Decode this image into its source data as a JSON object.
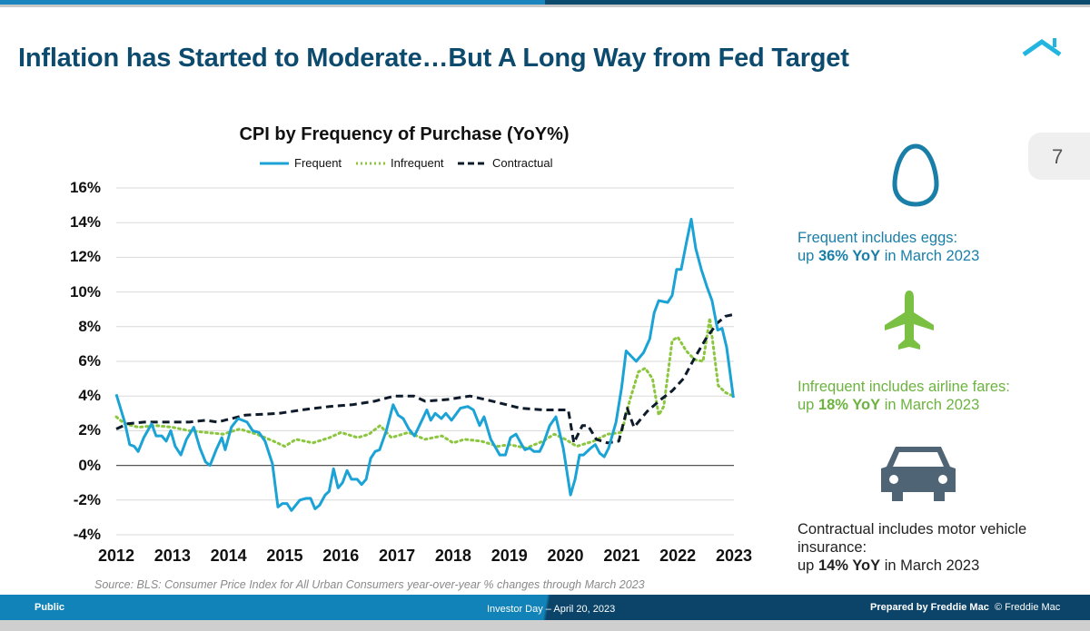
{
  "slide": {
    "title": "Inflation has Started to Moderate…But A Long Way from Fed Target",
    "page_number": "7",
    "source": "Source: BLS: Consumer Price Index for All Urban Consumers year-over-year % changes through March 2023",
    "footer": {
      "left": "Public",
      "center": "Investor Day – April 20, 2023",
      "prepared": "Prepared by Freddie Mac",
      "copyright": "© Freddie Mac"
    },
    "colors": {
      "navy": "#0c4a6e",
      "blue": "#1a9fd4",
      "green": "#7ac143",
      "slate": "#4f6475"
    }
  },
  "notes": [
    {
      "icon": "egg-icon",
      "pre": "Frequent includes eggs:",
      "line2_pre": "up ",
      "bold": "36% YoY",
      "post": " in March 2023",
      "color": "#1a7fa8"
    },
    {
      "icon": "airplane-icon",
      "pre": "Infrequent includes airline fares:",
      "line2_pre": "up ",
      "bold": "18% YoY",
      "post": " in March 2023",
      "color": "#6cb33f"
    },
    {
      "icon": "car-icon",
      "pre": "Contractual includes motor vehicle insurance:",
      "line2_pre": "up ",
      "bold": "14% YoY",
      "post": " in March 2023",
      "color": "#222"
    }
  ],
  "chart_data": {
    "type": "line",
    "title": "CPI by Frequency of Purchase (YoY%)",
    "xlabel": "",
    "ylabel": "",
    "xlim": [
      2012,
      2023
    ],
    "ylim": [
      -4,
      16
    ],
    "x_ticks": [
      "2012",
      "2013",
      "2014",
      "2015",
      "2016",
      "2017",
      "2018",
      "2019",
      "2020",
      "2021",
      "2022",
      "2023"
    ],
    "y_ticks": [
      "16%",
      "14%",
      "12%",
      "10%",
      "8%",
      "6%",
      "4%",
      "2%",
      "0%",
      "-2%",
      "-4%"
    ],
    "grid": true,
    "legend": "top",
    "series": [
      {
        "name": "Frequent",
        "style": "solid",
        "color": "#1ba3d6",
        "points": [
          [
            2012.0,
            4.1
          ],
          [
            2012.15,
            2.5
          ],
          [
            2012.24,
            1.2
          ],
          [
            2012.32,
            1.1
          ],
          [
            2012.39,
            0.8
          ],
          [
            2012.49,
            1.6
          ],
          [
            2012.63,
            2.4
          ],
          [
            2012.71,
            1.7
          ],
          [
            2012.81,
            1.7
          ],
          [
            2012.89,
            1.4
          ],
          [
            2012.97,
            2.0
          ],
          [
            2013.05,
            1.1
          ],
          [
            2013.15,
            0.6
          ],
          [
            2013.25,
            1.5
          ],
          [
            2013.38,
            2.2
          ],
          [
            2013.49,
            1.0
          ],
          [
            2013.59,
            0.2
          ],
          [
            2013.67,
            0.0
          ],
          [
            2013.78,
            0.9
          ],
          [
            2013.88,
            1.6
          ],
          [
            2013.94,
            0.9
          ],
          [
            2014.05,
            2.2
          ],
          [
            2014.17,
            2.7
          ],
          [
            2014.33,
            2.5
          ],
          [
            2014.43,
            2.0
          ],
          [
            2014.54,
            1.9
          ],
          [
            2014.65,
            1.4
          ],
          [
            2014.78,
            0.1
          ],
          [
            2014.88,
            -2.4
          ],
          [
            2014.96,
            -2.2
          ],
          [
            2015.04,
            -2.2
          ],
          [
            2015.12,
            -2.6
          ],
          [
            2015.27,
            -2.0
          ],
          [
            2015.38,
            -1.9
          ],
          [
            2015.46,
            -1.9
          ],
          [
            2015.54,
            -2.5
          ],
          [
            2015.62,
            -2.3
          ],
          [
            2015.72,
            -1.7
          ],
          [
            2015.79,
            -1.5
          ],
          [
            2015.87,
            -0.2
          ],
          [
            2015.95,
            -1.3
          ],
          [
            2016.03,
            -1.0
          ],
          [
            2016.11,
            -0.3
          ],
          [
            2016.19,
            -0.8
          ],
          [
            2016.29,
            -0.8
          ],
          [
            2016.37,
            -1.1
          ],
          [
            2016.45,
            -0.8
          ],
          [
            2016.53,
            0.4
          ],
          [
            2016.61,
            0.8
          ],
          [
            2016.69,
            0.9
          ],
          [
            2016.81,
            2.0
          ],
          [
            2016.93,
            3.5
          ],
          [
            2017.02,
            2.9
          ],
          [
            2017.11,
            2.7
          ],
          [
            2017.21,
            2.1
          ],
          [
            2017.31,
            1.7
          ],
          [
            2017.4,
            2.3
          ],
          [
            2017.53,
            3.2
          ],
          [
            2017.6,
            2.6
          ],
          [
            2017.68,
            3.0
          ],
          [
            2017.79,
            2.7
          ],
          [
            2017.87,
            3.0
          ],
          [
            2017.97,
            2.6
          ],
          [
            2018.13,
            3.3
          ],
          [
            2018.26,
            3.4
          ],
          [
            2018.36,
            3.2
          ],
          [
            2018.47,
            2.3
          ],
          [
            2018.55,
            2.8
          ],
          [
            2018.67,
            1.5
          ],
          [
            2018.76,
            1.0
          ],
          [
            2018.83,
            0.6
          ],
          [
            2018.93,
            0.6
          ],
          [
            2019.02,
            1.6
          ],
          [
            2019.12,
            1.8
          ],
          [
            2019.22,
            1.2
          ],
          [
            2019.28,
            0.9
          ],
          [
            2019.36,
            1.0
          ],
          [
            2019.44,
            0.8
          ],
          [
            2019.54,
            0.8
          ],
          [
            2019.6,
            1.2
          ],
          [
            2019.72,
            2.3
          ],
          [
            2019.83,
            2.8
          ],
          [
            2019.96,
            1.0
          ],
          [
            2020.09,
            -1.7
          ],
          [
            2020.17,
            -0.8
          ],
          [
            2020.25,
            0.6
          ],
          [
            2020.32,
            0.6
          ],
          [
            2020.45,
            1.0
          ],
          [
            2020.53,
            1.2
          ],
          [
            2020.61,
            0.7
          ],
          [
            2020.69,
            0.5
          ],
          [
            2020.77,
            1.0
          ],
          [
            2020.9,
            2.5
          ],
          [
            2021.0,
            4.5
          ],
          [
            2021.08,
            6.6
          ],
          [
            2021.26,
            6.0
          ],
          [
            2021.39,
            6.5
          ],
          [
            2021.5,
            7.3
          ],
          [
            2021.58,
            8.8
          ],
          [
            2021.66,
            9.5
          ],
          [
            2021.82,
            9.4
          ],
          [
            2021.9,
            9.8
          ],
          [
            2021.98,
            11.3
          ],
          [
            2022.06,
            11.3
          ],
          [
            2022.15,
            12.8
          ],
          [
            2022.24,
            14.2
          ],
          [
            2022.32,
            12.5
          ],
          [
            2022.42,
            11.3
          ],
          [
            2022.52,
            10.3
          ],
          [
            2022.61,
            9.5
          ],
          [
            2022.71,
            7.8
          ],
          [
            2022.79,
            7.9
          ],
          [
            2022.87,
            6.8
          ],
          [
            2022.99,
            3.9
          ]
        ]
      },
      {
        "name": "Infrequent",
        "style": "dotted",
        "color": "#8cc63f",
        "points": [
          [
            2012.0,
            2.8
          ],
          [
            2012.15,
            2.4
          ],
          [
            2012.4,
            2.2
          ],
          [
            2012.7,
            2.3
          ],
          [
            2013.0,
            2.2
          ],
          [
            2013.3,
            2.0
          ],
          [
            2013.6,
            1.9
          ],
          [
            2013.9,
            1.8
          ],
          [
            2014.2,
            2.1
          ],
          [
            2014.5,
            1.8
          ],
          [
            2014.8,
            1.4
          ],
          [
            2015.0,
            1.1
          ],
          [
            2015.2,
            1.5
          ],
          [
            2015.5,
            1.3
          ],
          [
            2015.8,
            1.6
          ],
          [
            2016.0,
            1.9
          ],
          [
            2016.3,
            1.6
          ],
          [
            2016.5,
            1.8
          ],
          [
            2016.7,
            2.3
          ],
          [
            2016.9,
            1.6
          ],
          [
            2017.2,
            1.9
          ],
          [
            2017.5,
            1.5
          ],
          [
            2017.8,
            1.7
          ],
          [
            2018.0,
            1.3
          ],
          [
            2018.2,
            1.5
          ],
          [
            2018.5,
            1.4
          ],
          [
            2018.8,
            1.1
          ],
          [
            2019.0,
            1.2
          ],
          [
            2019.3,
            1.0
          ],
          [
            2019.6,
            1.4
          ],
          [
            2019.8,
            1.8
          ],
          [
            2020.0,
            1.5
          ],
          [
            2020.2,
            1.1
          ],
          [
            2020.5,
            1.4
          ],
          [
            2020.75,
            1.8
          ],
          [
            2021.0,
            1.9
          ],
          [
            2021.15,
            3.8
          ],
          [
            2021.3,
            5.4
          ],
          [
            2021.42,
            5.6
          ],
          [
            2021.55,
            5.0
          ],
          [
            2021.66,
            2.9
          ],
          [
            2021.75,
            3.4
          ],
          [
            2021.9,
            7.2
          ],
          [
            2022.0,
            7.4
          ],
          [
            2022.15,
            6.6
          ],
          [
            2022.3,
            6.1
          ],
          [
            2022.45,
            6.0
          ],
          [
            2022.57,
            8.5
          ],
          [
            2022.72,
            4.6
          ],
          [
            2022.85,
            4.2
          ],
          [
            2022.99,
            4.0
          ]
        ]
      },
      {
        "name": "Contractual",
        "style": "dashed",
        "color": "#0d1b2a",
        "points": [
          [
            2012.0,
            2.1
          ],
          [
            2012.2,
            2.4
          ],
          [
            2012.5,
            2.5
          ],
          [
            2013.0,
            2.5
          ],
          [
            2013.3,
            2.5
          ],
          [
            2013.6,
            2.6
          ],
          [
            2013.8,
            2.5
          ],
          [
            2014.3,
            2.9
          ],
          [
            2014.9,
            3.0
          ],
          [
            2015.3,
            3.2
          ],
          [
            2015.8,
            3.4
          ],
          [
            2016.2,
            3.5
          ],
          [
            2016.6,
            3.7
          ],
          [
            2016.95,
            4.0
          ],
          [
            2017.3,
            4.0
          ],
          [
            2017.5,
            3.7
          ],
          [
            2017.9,
            3.8
          ],
          [
            2018.3,
            4.0
          ],
          [
            2018.7,
            3.7
          ],
          [
            2019.2,
            3.3
          ],
          [
            2019.6,
            3.2
          ],
          [
            2020.0,
            3.2
          ],
          [
            2020.05,
            3.2
          ],
          [
            2020.15,
            1.3
          ],
          [
            2020.3,
            2.3
          ],
          [
            2020.4,
            2.3
          ],
          [
            2020.55,
            1.5
          ],
          [
            2020.75,
            1.3
          ],
          [
            2020.95,
            1.4
          ],
          [
            2021.1,
            3.3
          ],
          [
            2021.22,
            2.2
          ],
          [
            2021.45,
            3.1
          ],
          [
            2021.7,
            3.8
          ],
          [
            2021.9,
            4.3
          ],
          [
            2022.1,
            5.0
          ],
          [
            2022.3,
            6.2
          ],
          [
            2022.5,
            7.3
          ],
          [
            2022.7,
            8.2
          ],
          [
            2022.85,
            8.6
          ],
          [
            2022.99,
            8.7
          ]
        ]
      }
    ]
  }
}
